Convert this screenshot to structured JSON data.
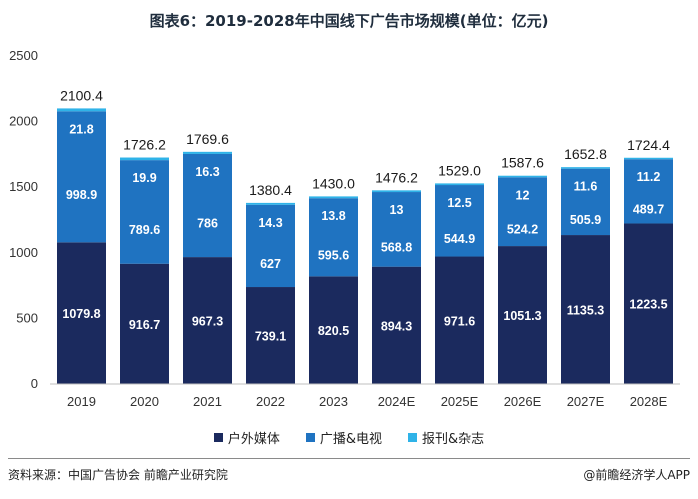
{
  "header": {
    "title": "图表6：2019-2028年中国线下广告市场规模(单位：亿元)"
  },
  "chart_data": {
    "type": "bar",
    "stacked": true,
    "title": "图表6：2019-2028年中国线下广告市场规模(单位：亿元)",
    "xlabel": "",
    "ylabel": "",
    "ylim": [
      0,
      2500
    ],
    "yticks": [
      0,
      500,
      1000,
      1500,
      2000,
      2500
    ],
    "categories": [
      "2019",
      "2020",
      "2021",
      "2022",
      "2023",
      "2024E",
      "2025E",
      "2026E",
      "2027E",
      "2028E"
    ],
    "series": [
      {
        "name": "户外媒体",
        "color": "#1b2a5e",
        "values": [
          1079.8,
          916.7,
          967.3,
          739.1,
          820.5,
          894.3,
          971.6,
          1051.3,
          1135.3,
          1223.5
        ]
      },
      {
        "name": "广播&电视",
        "color": "#1f73c1",
        "values": [
          998.9,
          789.6,
          786,
          627,
          595.6,
          568.8,
          544.9,
          524.2,
          505.9,
          489.7
        ]
      },
      {
        "name": "报刊&杂志",
        "color": "#2fb3e8",
        "values": [
          21.8,
          19.9,
          16.3,
          14.3,
          13.8,
          13,
          12.5,
          12,
          11.6,
          11.2
        ]
      }
    ],
    "totals": [
      2100.4,
      1726.2,
      1769.6,
      1380.4,
      1430.0,
      1476.2,
      1529.0,
      1587.6,
      1652.8,
      1724.4
    ],
    "total_labels": [
      "2100.4",
      "1726.2",
      "1769.6",
      "1380.4",
      "1430.0",
      "1476.2",
      "1529.0",
      "1587.6",
      "1652.8",
      "1724.4"
    ],
    "legend_position": "bottom",
    "grid": false
  },
  "legend": {
    "items": [
      {
        "label": "户外媒体",
        "color": "#1b2a5e"
      },
      {
        "label": "广播&电视",
        "color": "#1f73c1"
      },
      {
        "label": "报刊&杂志",
        "color": "#2fb3e8"
      }
    ]
  },
  "footer": {
    "source": "资料来源：中国广告协会 前瞻产业研究院",
    "credit": "@前瞻经济学人APP"
  }
}
